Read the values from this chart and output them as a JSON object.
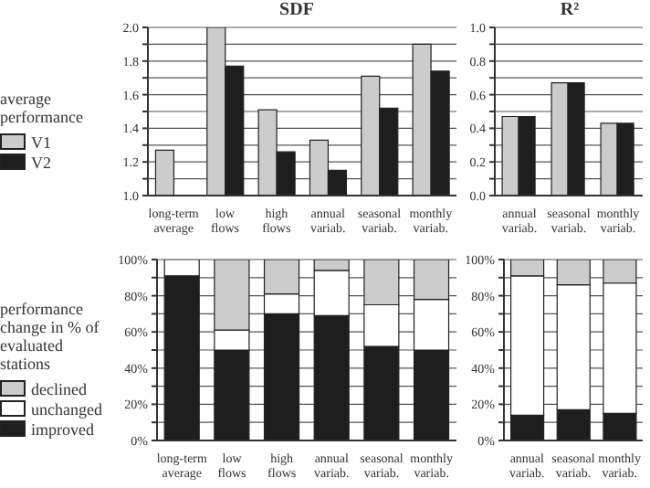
{
  "chart_data": [
    {
      "type": "bar",
      "title": "SDF",
      "legend_title": "average performance",
      "legend": "left",
      "grid": "y",
      "categories": [
        "long-term average",
        "low flows",
        "high flows",
        "annual variab.",
        "seasonal variab.",
        "monthly variab."
      ],
      "series": [
        {
          "name": "V1",
          "color": "#cccccc",
          "values": [
            1.27,
            2.0,
            1.51,
            1.33,
            1.71,
            1.9
          ]
        },
        {
          "name": "V2",
          "color": "#1e1e1e",
          "values": [
            null,
            1.77,
            1.26,
            1.15,
            1.52,
            1.74
          ]
        }
      ],
      "ylim": [
        1.0,
        2.0
      ],
      "yticks": [
        {
          "value": 1.0,
          "label": "1.0"
        },
        {
          "value": 1.1,
          "label": null
        },
        {
          "value": 1.2,
          "label": "1.2"
        },
        {
          "value": 1.3,
          "label": null
        },
        {
          "value": 1.4,
          "label": "1.4"
        },
        {
          "value": 1.5,
          "label": null
        },
        {
          "value": 1.6,
          "label": "1.6"
        },
        {
          "value": 1.7,
          "label": null
        },
        {
          "value": 1.8,
          "label": "1.8"
        },
        {
          "value": 1.9,
          "label": null
        },
        {
          "value": 2.0,
          "label": "2.0"
        }
      ]
    },
    {
      "type": "bar",
      "title": "R²",
      "grid": "y",
      "categories": [
        "annual variab.",
        "seasonal variab.",
        "monthly variab."
      ],
      "series": [
        {
          "color": "#cccccc",
          "values": [
            0.47,
            0.67,
            0.43
          ]
        },
        {
          "color": "#1e1e1e",
          "values": [
            0.47,
            0.67,
            0.43
          ]
        }
      ],
      "ylim": [
        0,
        1.0
      ],
      "yticks": [
        {
          "value": 0,
          "label": "0.0"
        },
        {
          "value": 0.1,
          "label": null
        },
        {
          "value": 0.2,
          "label": "0.2"
        },
        {
          "value": 0.3,
          "label": null
        },
        {
          "value": 0.4,
          "label": "0.4"
        },
        {
          "value": 0.5,
          "label": null
        },
        {
          "value": 0.6,
          "label": "0.6"
        },
        {
          "value": 0.7,
          "label": null
        },
        {
          "value": 0.8,
          "label": "0.8"
        },
        {
          "value": 0.9,
          "label": null
        },
        {
          "value": 1.0,
          "label": "1.0"
        }
      ]
    },
    {
      "type": "bar",
      "stacked": true,
      "legend_title": "performance change in % of evaluated stations",
      "legend": "left",
      "grid": "y",
      "categories": [
        "long-term average",
        "low flows",
        "high flows",
        "annual variab.",
        "seasonal variab.",
        "monthly variab."
      ],
      "series": [
        {
          "name": "improved",
          "color": "#1e1e1e",
          "values": [
            91,
            50,
            70,
            69,
            52,
            50
          ]
        },
        {
          "name": "unchanged",
          "color": "#ffffff",
          "values": [
            9,
            11,
            11,
            25,
            23,
            28
          ]
        },
        {
          "name": "declined",
          "color": "#cccccc",
          "values": [
            0,
            39,
            19,
            6,
            25,
            22
          ]
        }
      ],
      "ylim": [
        0,
        100
      ],
      "yticks": [
        {
          "value": 0,
          "label": "0%"
        },
        {
          "value": 10,
          "label": null
        },
        {
          "value": 20,
          "label": "20%"
        },
        {
          "value": 30,
          "label": null
        },
        {
          "value": 40,
          "label": "40%"
        },
        {
          "value": 50,
          "label": null
        },
        {
          "value": 60,
          "label": "60%"
        },
        {
          "value": 70,
          "label": null
        },
        {
          "value": 80,
          "label": "80%"
        },
        {
          "value": 90,
          "label": null
        },
        {
          "value": 100,
          "label": "100%"
        }
      ]
    },
    {
      "type": "bar",
      "stacked": true,
      "grid": "y",
      "categories": [
        "annual variab.",
        "seasonal variab.",
        "monthly variab."
      ],
      "series": [
        {
          "color": "#1e1e1e",
          "values": [
            14,
            17,
            15
          ]
        },
        {
          "color": "#ffffff",
          "values": [
            77,
            69,
            72
          ]
        },
        {
          "color": "#cccccc",
          "values": [
            9,
            14,
            13
          ]
        }
      ],
      "ylim": [
        0,
        100
      ],
      "yticks": [
        {
          "value": 0,
          "label": "0%"
        },
        {
          "value": 10,
          "label": null
        },
        {
          "value": 20,
          "label": "20%"
        },
        {
          "value": 30,
          "label": null
        },
        {
          "value": 40,
          "label": "40%"
        },
        {
          "value": 50,
          "label": null
        },
        {
          "value": 60,
          "label": "60%"
        },
        {
          "value": 70,
          "label": null
        },
        {
          "value": 80,
          "label": "80%"
        },
        {
          "value": 90,
          "label": null
        },
        {
          "value": 100,
          "label": "100%"
        }
      ]
    }
  ]
}
